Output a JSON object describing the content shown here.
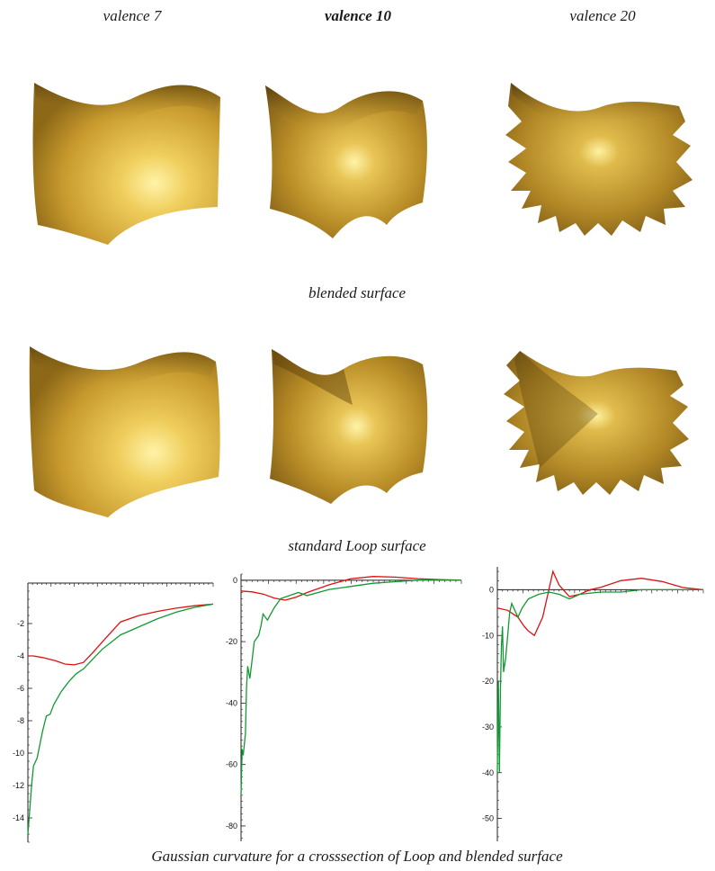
{
  "figure": {
    "column_labels": [
      "valence  7",
      "valence  10",
      "valence  20"
    ],
    "row_caption_1": "blended surface",
    "row_caption_2": "standard Loop surface",
    "caption": "Gaussian curvature for a crosssection  of Loop and blended surface"
  },
  "colors": {
    "surface_light": "#f6dc7a",
    "surface_mid": "#c9a43e",
    "surface_dark": "#6b4e12",
    "loop_curve": "#dd1111",
    "blended_curve": "#119933"
  },
  "chart_data": [
    {
      "type": "line",
      "ylim": [
        -15.5,
        0.5
      ],
      "xlim": [
        0,
        1
      ],
      "y_ticks": [
        -2,
        -4,
        -6,
        -8,
        -10,
        -12,
        -14
      ],
      "series": [
        {
          "x": [
            0,
            0.03,
            0.08,
            0.15,
            0.2,
            0.25,
            0.3,
            0.35,
            0.42,
            0.5,
            0.6,
            0.7,
            0.8,
            0.9,
            1.0
          ],
          "y": [
            -4.0,
            -4.0,
            -4.1,
            -4.3,
            -4.5,
            -4.55,
            -4.4,
            -3.8,
            -2.9,
            -1.9,
            -1.5,
            -1.25,
            -1.05,
            -0.9,
            -0.8
          ]
        },
        {
          "x": [
            0,
            0.01,
            0.02,
            0.03,
            0.05,
            0.08,
            0.1,
            0.12,
            0.14,
            0.18,
            0.22,
            0.26,
            0.3,
            0.35,
            0.4,
            0.5,
            0.6,
            0.7,
            0.8,
            0.9,
            1.0
          ],
          "y": [
            -15.0,
            -13.5,
            -12.0,
            -10.8,
            -10.3,
            -8.6,
            -7.7,
            -7.6,
            -7.0,
            -6.2,
            -5.6,
            -5.1,
            -4.8,
            -4.2,
            -3.6,
            -2.7,
            -2.2,
            -1.7,
            -1.3,
            -1.0,
            -0.8
          ]
        }
      ]
    },
    {
      "type": "line",
      "ylim": [
        -85,
        2
      ],
      "xlim": [
        0,
        1
      ],
      "y_ticks": [
        0,
        -20,
        -40,
        -60,
        -80
      ],
      "series": [
        {
          "x": [
            0,
            0.05,
            0.1,
            0.15,
            0.2,
            0.25,
            0.3,
            0.4,
            0.5,
            0.6,
            0.7,
            0.8,
            0.9,
            1.0
          ],
          "y": [
            -3.5,
            -3.8,
            -4.5,
            -5.8,
            -6.5,
            -5.5,
            -4.0,
            -1.5,
            0.5,
            1.2,
            1.0,
            0.5,
            0.2,
            0
          ]
        },
        {
          "x": [
            0,
            0.005,
            0.01,
            0.02,
            0.025,
            0.03,
            0.04,
            0.05,
            0.06,
            0.08,
            0.09,
            0.1,
            0.12,
            0.15,
            0.18,
            0.22,
            0.26,
            0.3,
            0.4,
            0.5,
            0.6,
            0.7,
            0.8,
            0.9,
            1.0
          ],
          "y": [
            -70,
            -55,
            -57,
            -50,
            -35,
            -28,
            -32,
            -26,
            -20,
            -18,
            -15,
            -11,
            -13,
            -9,
            -6,
            -5,
            -4,
            -5,
            -3,
            -2,
            -1,
            -0.5,
            0,
            0,
            0
          ]
        }
      ]
    },
    {
      "type": "line",
      "ylim": [
        -55,
        5
      ],
      "xlim": [
        0,
        1
      ],
      "y_ticks": [
        0,
        -10,
        -20,
        -30,
        -40,
        -50
      ],
      "series": [
        {
          "x": [
            0,
            0.05,
            0.1,
            0.13,
            0.15,
            0.18,
            0.22,
            0.25,
            0.27,
            0.3,
            0.35,
            0.4,
            0.45,
            0.5,
            0.6,
            0.7,
            0.8,
            0.9,
            1.0
          ],
          "y": [
            -4,
            -4.5,
            -6,
            -8,
            -9,
            -10,
            -6,
            0,
            4,
            1,
            -1.5,
            -1,
            0,
            0.5,
            2,
            2.5,
            1.8,
            0.5,
            0
          ]
        },
        {
          "x": [
            0,
            0.005,
            0.01,
            0.015,
            0.02,
            0.025,
            0.03,
            0.04,
            0.05,
            0.06,
            0.07,
            0.08,
            0.1,
            0.12,
            0.15,
            0.2,
            0.25,
            0.3,
            0.35,
            0.4,
            0.5,
            0.6,
            0.7,
            0.8,
            0.9,
            1.0
          ],
          "y": [
            -40,
            -20,
            -40,
            -22,
            -12,
            -8,
            -18,
            -15,
            -10,
            -5,
            -3,
            -4,
            -6,
            -4,
            -2,
            -1,
            -0.5,
            -1,
            -2,
            -1,
            -0.5,
            -0.5,
            0,
            0,
            0,
            0
          ]
        }
      ]
    }
  ]
}
